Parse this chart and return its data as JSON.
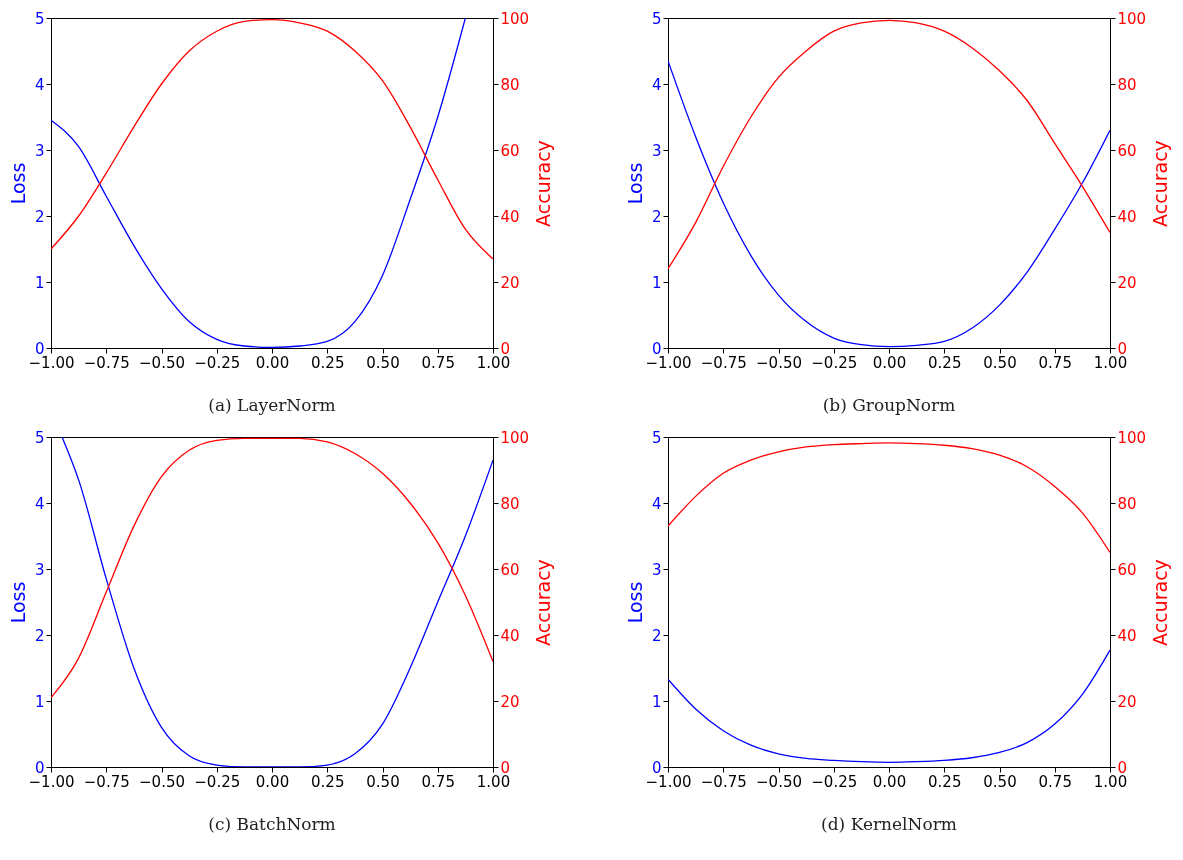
{
  "chart_data": [
    {
      "type": "line",
      "title": "(a) LayerNorm",
      "ylabel": "Loss",
      "y2label": "Accuracy",
      "x": [
        -1,
        -0.875,
        -0.75,
        -0.625,
        -0.5,
        -0.375,
        -0.25,
        -0.125,
        0,
        0.125,
        0.25,
        0.375,
        0.5,
        0.625,
        0.75,
        0.875,
        1
      ],
      "xlim": [
        -1,
        1
      ],
      "xticks": [
        {
          "value": -1,
          "label": "−1.00"
        },
        {
          "value": -0.75,
          "label": "−0.75"
        },
        {
          "value": -0.5,
          "label": "−0.50"
        },
        {
          "value": -0.25,
          "label": "−0.25"
        },
        {
          "value": 0,
          "label": "0.00"
        },
        {
          "value": 0.25,
          "label": "0.25"
        },
        {
          "value": 0.5,
          "label": "0.50"
        },
        {
          "value": 0.75,
          "label": "0.75"
        },
        {
          "value": 1,
          "label": "1.00"
        }
      ],
      "ylim": [
        0,
        5
      ],
      "yticks": [
        0,
        1,
        2,
        3,
        4,
        5
      ],
      "y2lim": [
        0,
        100
      ],
      "y2ticks": [
        0,
        20,
        40,
        60,
        80,
        100
      ],
      "series": [
        {
          "color": "#0000ff",
          "x": [
            -1,
            -0.875,
            -0.75,
            -0.625,
            -0.5,
            -0.375,
            -0.25,
            -0.125,
            0,
            0.125,
            0.25,
            0.375,
            0.5,
            0.625,
            0.75,
            0.875
          ],
          "values": [
            3.45,
            3.05,
            2.3,
            1.55,
            0.9,
            0.4,
            0.13,
            0.03,
            0.01,
            0.03,
            0.1,
            0.4,
            1.1,
            2.25,
            3.5,
            5.0
          ]
        },
        {
          "color": "#ff0000",
          "axis": "y2",
          "values": [
            30,
            40,
            53,
            67,
            80,
            90,
            96,
            99,
            99.5,
            98.5,
            96,
            90,
            81,
            67,
            51,
            36,
            27
          ]
        }
      ]
    },
    {
      "type": "line",
      "title": "(b) GroupNorm",
      "ylabel": "Loss",
      "y2label": "Accuracy",
      "x": [
        -1,
        -0.875,
        -0.75,
        -0.625,
        -0.5,
        -0.375,
        -0.25,
        -0.125,
        0,
        0.125,
        0.25,
        0.375,
        0.5,
        0.625,
        0.75,
        0.875,
        1
      ],
      "xlim": [
        -1,
        1
      ],
      "xticks": [
        {
          "value": -1,
          "label": "−1.00"
        },
        {
          "value": -0.75,
          "label": "−0.75"
        },
        {
          "value": -0.5,
          "label": "−0.50"
        },
        {
          "value": -0.25,
          "label": "−0.25"
        },
        {
          "value": 0,
          "label": "0.00"
        },
        {
          "value": 0.25,
          "label": "0.25"
        },
        {
          "value": 0.5,
          "label": "0.50"
        },
        {
          "value": 0.75,
          "label": "0.75"
        },
        {
          "value": 1,
          "label": "1.00"
        }
      ],
      "ylim": [
        0,
        5
      ],
      "yticks": [
        0,
        1,
        2,
        3,
        4,
        5
      ],
      "y2lim": [
        0,
        100
      ],
      "y2ticks": [
        0,
        20,
        40,
        60,
        80,
        100
      ],
      "series": [
        {
          "color": "#0000ff",
          "values": [
            4.35,
            3.2,
            2.2,
            1.4,
            0.8,
            0.4,
            0.15,
            0.05,
            0.02,
            0.04,
            0.1,
            0.3,
            0.65,
            1.15,
            1.8,
            2.5,
            3.3
          ]
        },
        {
          "color": "#ff0000",
          "axis": "y2",
          "values": [
            24,
            38,
            55,
            70,
            82,
            90,
            96,
            98.5,
            99.3,
            98.5,
            96,
            91,
            84,
            75,
            62,
            49,
            35
          ]
        }
      ]
    },
    {
      "type": "line",
      "title": "(c) BatchNorm",
      "ylabel": "Loss",
      "y2label": "Accuracy",
      "x": [
        -1,
        -0.875,
        -0.75,
        -0.625,
        -0.5,
        -0.375,
        -0.25,
        -0.125,
        0,
        0.125,
        0.25,
        0.375,
        0.5,
        0.625,
        0.75,
        0.875,
        1
      ],
      "xlim": [
        -1,
        1
      ],
      "xticks": [
        {
          "value": -1,
          "label": "−1.00"
        },
        {
          "value": -0.75,
          "label": "−0.75"
        },
        {
          "value": -0.5,
          "label": "−0.50"
        },
        {
          "value": -0.25,
          "label": "−0.25"
        },
        {
          "value": 0,
          "label": "0.00"
        },
        {
          "value": 0.25,
          "label": "0.25"
        },
        {
          "value": 0.5,
          "label": "0.50"
        },
        {
          "value": 0.75,
          "label": "0.75"
        },
        {
          "value": 1,
          "label": "1.00"
        }
      ],
      "ylim": [
        0,
        5
      ],
      "yticks": [
        0,
        1,
        2,
        3,
        4,
        5
      ],
      "y2lim": [
        0,
        100
      ],
      "y2ticks": [
        0,
        20,
        40,
        60,
        80,
        100
      ],
      "series": [
        {
          "color": "#0000ff",
          "x": [
            -0.95,
            -0.875,
            -0.75,
            -0.625,
            -0.5,
            -0.375,
            -0.25,
            -0.125,
            0,
            0.125,
            0.25,
            0.375,
            0.5,
            0.625,
            0.75,
            0.875,
            1
          ],
          "values": [
            5.0,
            4.35,
            2.85,
            1.5,
            0.6,
            0.17,
            0.03,
            0,
            0,
            0,
            0.03,
            0.2,
            0.65,
            1.5,
            2.5,
            3.5,
            4.65
          ]
        },
        {
          "color": "#ff0000",
          "axis": "y2",
          "values": [
            21,
            33,
            53,
            73,
            88,
            96,
            99,
            99.6,
            99.6,
            99.6,
            98.5,
            95,
            89,
            80,
            68,
            52,
            32
          ]
        }
      ]
    },
    {
      "type": "line",
      "title": "(d) KernelNorm",
      "ylabel": "Loss",
      "y2label": "Accuracy",
      "x": [
        -1,
        -0.875,
        -0.75,
        -0.625,
        -0.5,
        -0.375,
        -0.25,
        -0.125,
        0,
        0.125,
        0.25,
        0.375,
        0.5,
        0.625,
        0.75,
        0.875,
        1
      ],
      "xlim": [
        -1,
        1
      ],
      "xticks": [
        {
          "value": -1,
          "label": "−1.00"
        },
        {
          "value": -0.75,
          "label": "−0.75"
        },
        {
          "value": -0.5,
          "label": "−0.50"
        },
        {
          "value": -0.25,
          "label": "−0.25"
        },
        {
          "value": 0,
          "label": "0.00"
        },
        {
          "value": 0.25,
          "label": "0.25"
        },
        {
          "value": 0.5,
          "label": "0.50"
        },
        {
          "value": 0.75,
          "label": "0.75"
        },
        {
          "value": 1,
          "label": "1.00"
        }
      ],
      "ylim": [
        0,
        5
      ],
      "yticks": [
        0,
        1,
        2,
        3,
        4,
        5
      ],
      "y2lim": [
        0,
        100
      ],
      "y2ticks": [
        0,
        20,
        40,
        60,
        80,
        100
      ],
      "series": [
        {
          "color": "#0000ff",
          "values": [
            1.33,
            0.88,
            0.55,
            0.33,
            0.2,
            0.13,
            0.1,
            0.08,
            0.07,
            0.08,
            0.1,
            0.14,
            0.22,
            0.37,
            0.65,
            1.1,
            1.77
          ]
        },
        {
          "color": "#ff0000",
          "axis": "y2",
          "values": [
            73,
            82,
            89,
            93,
            95.5,
            97,
            97.7,
            98,
            98.2,
            98,
            97.5,
            96.5,
            94.5,
            91,
            85,
            77,
            65
          ]
        }
      ]
    }
  ]
}
